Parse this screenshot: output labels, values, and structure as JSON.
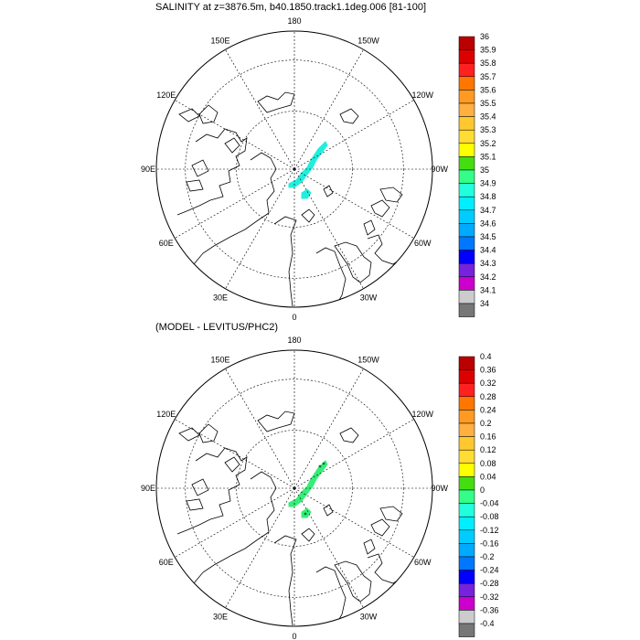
{
  "titles": {
    "top": "SALINITY at z=3876.5m, b40.1850.track1.1deg.006 [81-100]",
    "bottom": "(MODEL - LEVITUS/PHC2)"
  },
  "map_labels": [
    "180",
    "150E",
    "120E",
    "90E",
    "60E",
    "30E",
    "0",
    "30W",
    "60W",
    "90W",
    "120W",
    "150W"
  ],
  "colorbar_top": {
    "labels": [
      "36",
      "35.9",
      "35.8",
      "35.7",
      "35.6",
      "35.5",
      "35.4",
      "35.3",
      "35.2",
      "35.1",
      "35",
      "34.9",
      "34.8",
      "34.7",
      "34.6",
      "34.5",
      "34.4",
      "34.3",
      "34.2",
      "34.1",
      "34"
    ]
  },
  "colorbar_bottom": {
    "labels": [
      "0.4",
      "0.36",
      "0.32",
      "0.28",
      "0.24",
      "0.2",
      "0.16",
      "0.12",
      "0.08",
      "0.04",
      "0",
      "-0.04",
      "-0.08",
      "-0.12",
      "-0.16",
      "-0.2",
      "-0.24",
      "-0.28",
      "-0.32",
      "-0.36",
      "-0.4"
    ]
  },
  "colors": {
    "bins": [
      "#bb0000",
      "#dd0000",
      "#ff2020",
      "#ff7700",
      "#ff9a22",
      "#ffb040",
      "#ffc830",
      "#ffdd33",
      "#ffff00",
      "#44dd11",
      "#33ff88",
      "#22ffdd",
      "#00eeff",
      "#00ccff",
      "#00aaff",
      "#0077ff",
      "#0000ff",
      "#7722dd",
      "#cc00cc",
      "#cccccc",
      "#777777"
    ],
    "field_top": "#22eedd",
    "field_bottom": "#33ee77"
  }
}
